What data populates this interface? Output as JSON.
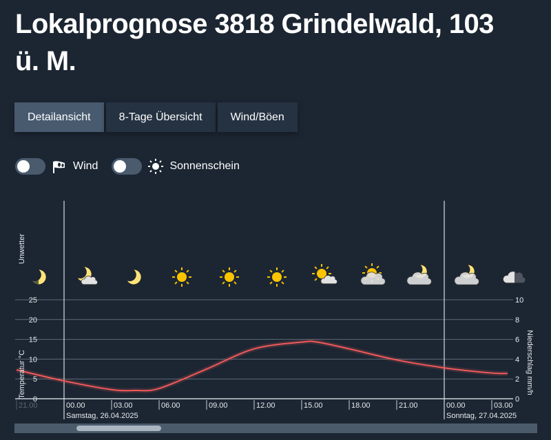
{
  "header": {
    "title_line1": "Lokalprognose 3818 Grindelwald, 103",
    "title_line2": "ü. M."
  },
  "tabs": [
    {
      "label": "Detailansicht",
      "active": true
    },
    {
      "label": "8-Tage Übersicht",
      "active": false
    },
    {
      "label": "Wind/Böen",
      "active": false
    }
  ],
  "toggles": [
    {
      "label": "Wind",
      "icon": "windsock-icon",
      "on": false
    },
    {
      "label": "Sonnenschein",
      "icon": "sun-icon",
      "on": false
    }
  ],
  "colors": {
    "background": "#1c2633",
    "temperature_line": "#f05a5a",
    "tab_active": "#485a6e",
    "tab": "#253241"
  },
  "chart_data": {
    "type": "line",
    "top_row_label": "Unwetter",
    "ylabel": "Temperatur °C",
    "y2label": "Niederschlag mm/h",
    "ylim": [
      0,
      25
    ],
    "y2lim": [
      0,
      10
    ],
    "yticks": [
      "0",
      "5",
      "10",
      "15",
      "20",
      "25"
    ],
    "y2ticks": [
      "0",
      "2",
      "4",
      "6",
      "8",
      "10"
    ],
    "grid": true,
    "xticks": [
      "21.00",
      "00.00",
      "03.00",
      "06.00",
      "09.00",
      "12.00",
      "15.00",
      "18.00",
      "21.00",
      "00.00",
      "03.00"
    ],
    "day_labels": [
      {
        "at": "00.00",
        "label": "Samstag, 26.04.2025"
      },
      {
        "at": "00.00",
        "label": "Sonntag, 27.04.2025"
      }
    ],
    "series": [
      {
        "hours": [
          -3,
          0,
          3,
          4.5,
          6,
          9,
          12,
          15,
          16,
          18,
          21,
          24,
          27,
          28
        ],
        "values": [
          7.3,
          4.5,
          2.3,
          2.1,
          2.6,
          7.5,
          12.6,
          14.3,
          14.3,
          12.6,
          9.8,
          7.8,
          6.5,
          6.4
        ]
      }
    ],
    "weather_icons": [
      "moon",
      "moon-cloud",
      "moon",
      "sun",
      "sun",
      "sun",
      "sun-cloud",
      "sun-overcast",
      "moon-overcast",
      "moon-overcast",
      "overcast"
    ]
  }
}
